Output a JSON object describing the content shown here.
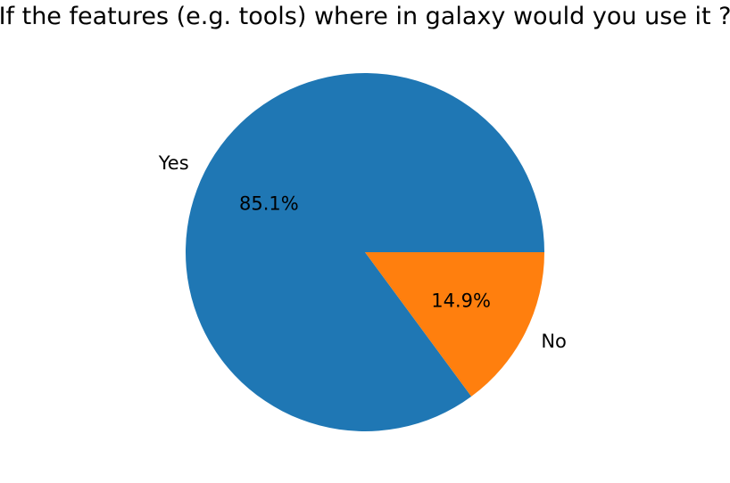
{
  "chart_data": {
    "type": "pie",
    "title": "If the features (e.g. tools) where in galaxy would you use it ?",
    "slices": [
      {
        "label": "Yes",
        "value": 85.1,
        "percent_label": "85.1%",
        "color": "#1f77b4"
      },
      {
        "label": "No",
        "value": 14.9,
        "percent_label": "14.9%",
        "color": "#ff7f0e"
      }
    ]
  }
}
